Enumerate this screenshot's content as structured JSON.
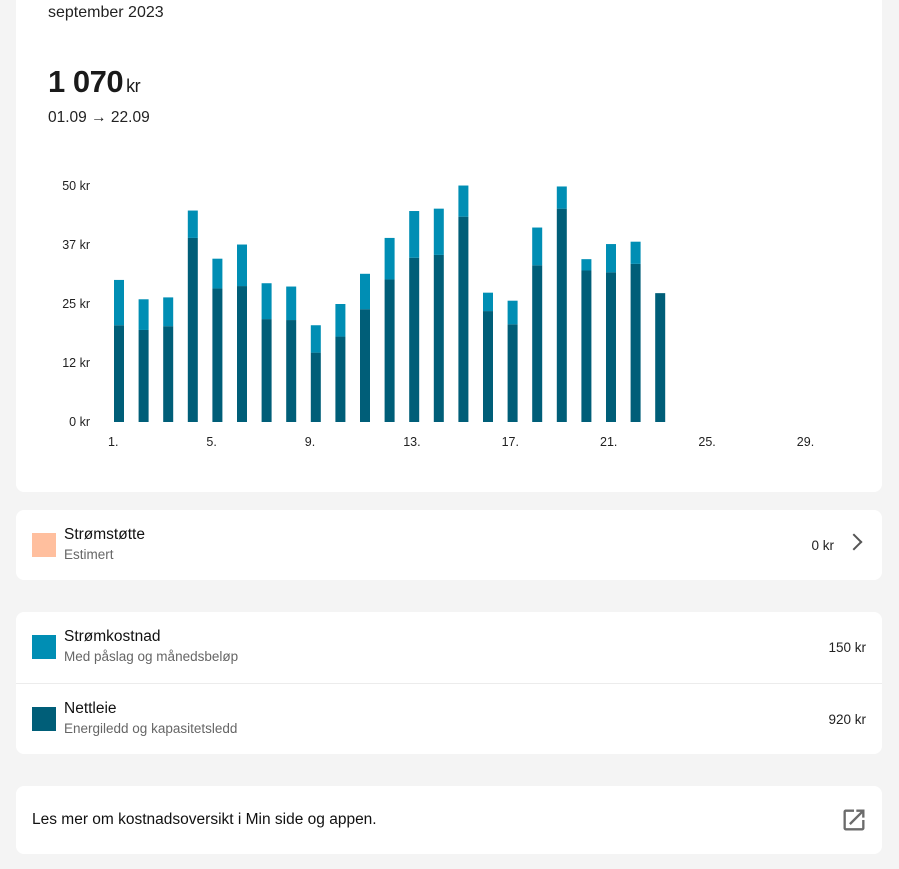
{
  "header": {
    "month": "september 2023",
    "total_value": "1 070",
    "total_unit": "kr",
    "period": "01.09 → 22.09"
  },
  "chart_data": {
    "type": "bar",
    "stacked": true,
    "ylim": [
      0,
      50
    ],
    "y_ticks": [
      {
        "value": 0,
        "label": "0 kr"
      },
      {
        "value": 12.5,
        "label": "12 kr"
      },
      {
        "value": 25,
        "label": "25 kr"
      },
      {
        "value": 37.5,
        "label": "37 kr"
      },
      {
        "value": 50,
        "label": "50 kr"
      }
    ],
    "x_ticks": [
      "1.",
      "5.",
      "9.",
      "13.",
      "17.",
      "21.",
      "25.",
      "29."
    ],
    "x_tick_days": [
      1,
      5,
      9,
      13,
      17,
      21,
      25,
      29
    ],
    "days": 30,
    "categories": [
      1,
      2,
      3,
      4,
      5,
      6,
      7,
      8,
      9,
      10,
      11,
      12,
      13,
      14,
      15,
      16,
      17,
      18,
      19,
      20,
      21,
      22,
      23
    ],
    "series": [
      {
        "name": "Nettleie",
        "color": "#005e78",
        "values": [
          20.5,
          19.5,
          20.3,
          39.0,
          28.3,
          28.8,
          21.8,
          21.6,
          14.7,
          18.1,
          23.9,
          30.2,
          34.8,
          35.4,
          43.5,
          23.5,
          20.7,
          33.2,
          45.2,
          32.1,
          31.7,
          33.5,
          27.3
        ]
      },
      {
        "name": "Strømkostnad",
        "color": "#008eb4",
        "values": [
          9.6,
          6.5,
          6.1,
          5.8,
          6.3,
          8.8,
          7.6,
          7.1,
          5.8,
          6.9,
          7.5,
          8.8,
          9.9,
          9.8,
          6.6,
          3.9,
          5.0,
          8.0,
          4.7,
          2.4,
          6.0,
          4.7,
          0.0
        ]
      }
    ],
    "grid": false
  },
  "support": {
    "title": "Strømstøtte",
    "subtitle": "Estimert",
    "value": "0 kr",
    "color": "#ffbf9e",
    "icon": "chevron-right-icon"
  },
  "costs": {
    "items": [
      {
        "title": "Strømkostnad",
        "subtitle": "Med påslag og månedsbeløp",
        "value": "150 kr",
        "color": "#008eb4"
      },
      {
        "title": "Nettleie",
        "subtitle": "Energiledd og kapasitetsledd",
        "value": "920 kr",
        "color": "#005e78"
      }
    ]
  },
  "info": {
    "text": "Les mer om kostnadsoversikt i Min side og appen.",
    "icon": "external-link-icon"
  }
}
